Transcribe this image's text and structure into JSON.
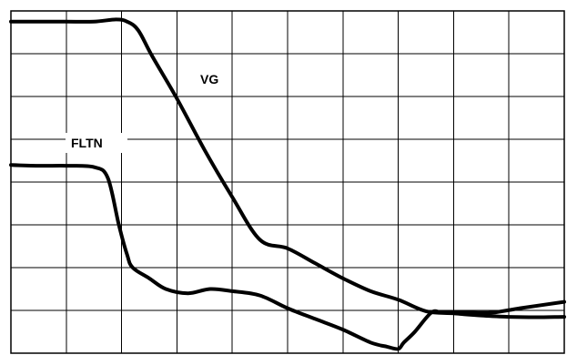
{
  "chart_data": {
    "type": "line",
    "title": "",
    "xlabel": "",
    "ylabel": "",
    "grid": true,
    "grid_divisions": {
      "x": 10,
      "y": 8
    },
    "xlim": [
      0,
      10
    ],
    "ylim": [
      0,
      8
    ],
    "series": [
      {
        "name": "VG",
        "x": [
          0,
          0.5,
          1.0,
          1.5,
          1.9,
          2.1,
          2.3,
          2.55,
          3.0,
          3.5,
          4.0,
          4.5,
          5.0,
          5.5,
          6.0,
          6.5,
          7.0,
          7.5,
          8.0,
          8.5,
          9.0,
          9.5,
          10.0
        ],
        "y": [
          7.75,
          7.75,
          7.75,
          7.75,
          7.8,
          7.75,
          7.55,
          6.95,
          5.95,
          4.75,
          3.65,
          2.65,
          2.45,
          2.1,
          1.75,
          1.45,
          1.25,
          0.98,
          0.93,
          0.88,
          0.85,
          0.84,
          0.85
        ]
      },
      {
        "name": "FLTN",
        "x": [
          0,
          0.5,
          1.0,
          1.5,
          1.75,
          1.95,
          2.1,
          2.2,
          2.5,
          2.8,
          3.2,
          3.6,
          4.0,
          4.5,
          5.0,
          5.5,
          6.0,
          6.5,
          6.8,
          7.0,
          7.1,
          7.3,
          7.6,
          7.8,
          8.2,
          8.7,
          9.2,
          10.0
        ],
        "y": [
          4.4,
          4.38,
          4.38,
          4.35,
          4.1,
          3.0,
          2.3,
          2.0,
          1.75,
          1.5,
          1.4,
          1.5,
          1.45,
          1.35,
          1.05,
          0.8,
          0.55,
          0.25,
          0.15,
          0.1,
          0.25,
          0.5,
          0.95,
          0.95,
          0.95,
          0.95,
          1.05,
          1.2
        ]
      }
    ],
    "annotations": [
      {
        "text": "VG",
        "series": "VG"
      },
      {
        "text": "FLTN",
        "series": "FLTN"
      }
    ]
  }
}
